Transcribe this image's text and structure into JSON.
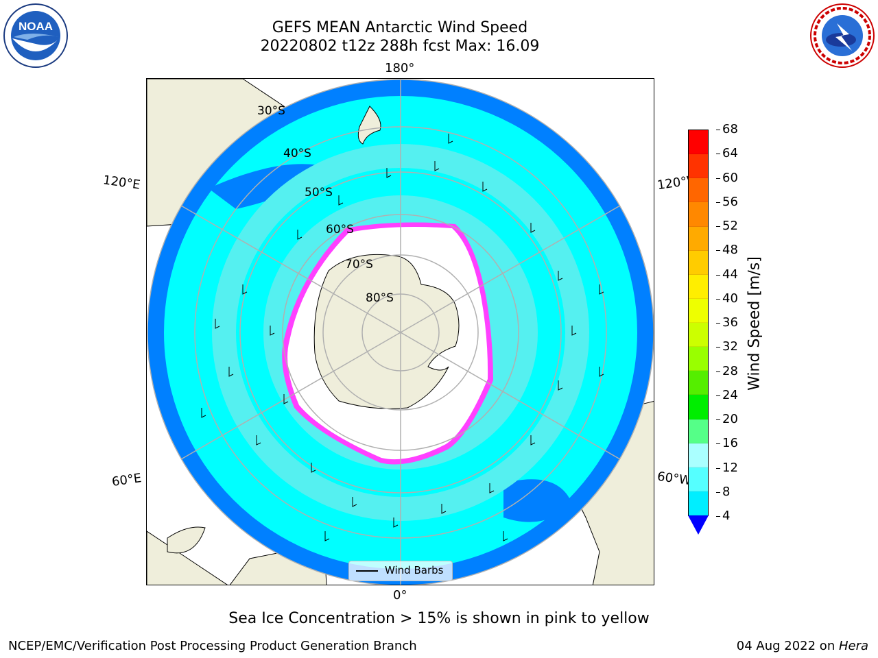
{
  "title": {
    "line1": "GEFS MEAN Antarctic Wind Speed",
    "line2": "20220802 t12z 288h fcst   Max: 16.09"
  },
  "logos": {
    "left": {
      "icon": "noaa-logo-icon",
      "text": "NOAA"
    },
    "right": {
      "icon": "national-weather-service-logo-icon",
      "text": "NATIONAL WEATHER SERVICE"
    }
  },
  "map": {
    "projection": "south-polar-stereographic",
    "longitude_labels": {
      "top": "180°",
      "upper_left": "120°E",
      "upper_right": "120°W",
      "lower_left": "60°E",
      "lower_right": "60°W",
      "bottom": "0°"
    },
    "latitude_labels": [
      "30°S",
      "40°S",
      "50°S",
      "60°S",
      "70°S",
      "80°S"
    ],
    "colors": {
      "land": "#efeedb",
      "ocean_low": "#0080ff",
      "ocean_mid": "#00ffff",
      "ocean_high": "#55f0f0",
      "sea_ice": "#ff40ff",
      "grid": "#b0b0b0"
    }
  },
  "legend": {
    "label": "Wind Barbs",
    "icon": "wind-barb-line-icon"
  },
  "colorbar": {
    "label": "Wind Speed [m/s]",
    "ticks": [
      "68",
      "64",
      "60",
      "56",
      "52",
      "48",
      "44",
      "40",
      "36",
      "32",
      "28",
      "24",
      "20",
      "16",
      "12",
      "8",
      "4"
    ],
    "colors": [
      "#ff0000",
      "#ff3300",
      "#ff6600",
      "#ff8800",
      "#ffaa00",
      "#ffcc00",
      "#ffee00",
      "#eeff00",
      "#ccff00",
      "#99ff00",
      "#55ee00",
      "#00ee00",
      "#55ff88",
      "#aaffff",
      "#55ffff",
      "#00eeff",
      "#0080ff"
    ],
    "extend_color": "#0000ff"
  },
  "caption": "Sea Ice Concentration > 15% is shown in pink to yellow",
  "footer": {
    "left": "NCEP/EMC/Verification Post Processing Product Generation Branch",
    "right_date": "04 Aug 2022 on ",
    "right_machine": "Hera"
  }
}
